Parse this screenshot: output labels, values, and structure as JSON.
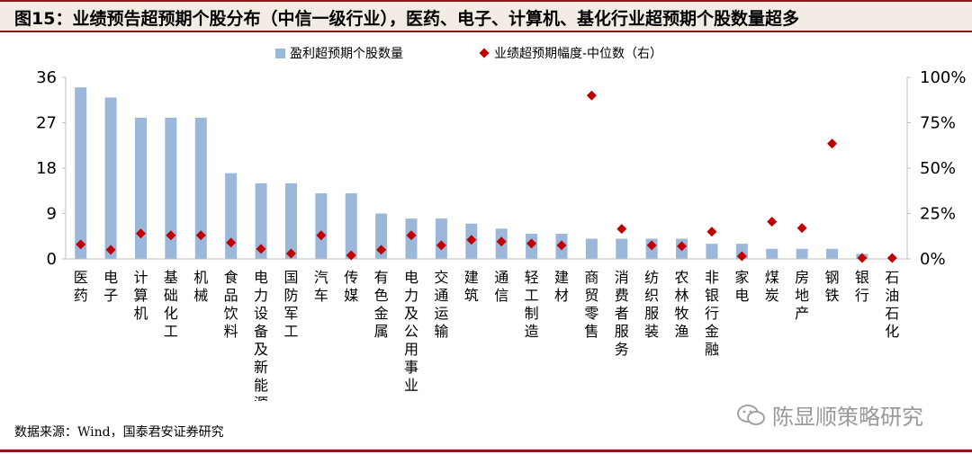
{
  "figure": {
    "title": "图15：业绩预告超预期个股分布（中信一级行业），医药、电子、计算机、基化行业超预期个股数量超多",
    "source": "数据来源：Wind，国泰君安证券研究",
    "watermark": "陈显顺策略研究"
  },
  "colors": {
    "bar": "#9bb7d9",
    "marker": "#c00000",
    "axis": "#bfbfbf",
    "title_border": "#8b1a1a"
  },
  "chart_data": {
    "type": "bar",
    "legend": {
      "position": "top-center",
      "bar_label": "盈利超预期个股数量",
      "marker_label": "业绩超预期幅度-中位数（右）"
    },
    "categories": [
      "医药",
      "电子",
      "计算机",
      "基础化工",
      "机械",
      "食品饮料",
      "电力设备及新能源",
      "国防军工",
      "汽车",
      "传媒",
      "有色金属",
      "电力及公用事业",
      "交通运输",
      "建筑",
      "通信",
      "轻工制造",
      "建材",
      "商贸零售",
      "消费者服务",
      "纺织服装",
      "农林牧渔",
      "非银行金融",
      "家电",
      "煤炭",
      "房地产",
      "钢铁",
      "银行",
      "石油石化"
    ],
    "series": [
      {
        "name": "盈利超预期个股数量",
        "type": "bar",
        "axis": "left",
        "values": [
          34,
          32,
          28,
          28,
          28,
          17,
          15,
          15,
          13,
          13,
          9,
          8,
          8,
          7,
          6,
          5,
          5,
          4,
          4,
          4,
          4,
          3,
          3,
          2,
          2,
          2,
          1,
          0
        ]
      },
      {
        "name": "业绩超预期幅度-中位数（右）",
        "type": "scatter",
        "axis": "right",
        "values": [
          8,
          5,
          14,
          13,
          13,
          9,
          5.5,
          3,
          13,
          2,
          5,
          13,
          7.5,
          10.5,
          9.5,
          8.5,
          7.5,
          90,
          16.5,
          7.5,
          7,
          15,
          1.5,
          20.5,
          17,
          63.5,
          0.5,
          0.5
        ]
      }
    ],
    "y_left": {
      "min": 0,
      "max": 36,
      "ticks": [
        "0",
        "9",
        "18",
        "27",
        "36"
      ]
    },
    "y_right": {
      "min": 0,
      "max": 100,
      "ticks": [
        "0%",
        "25%",
        "50%",
        "75%",
        "100%"
      ]
    }
  }
}
